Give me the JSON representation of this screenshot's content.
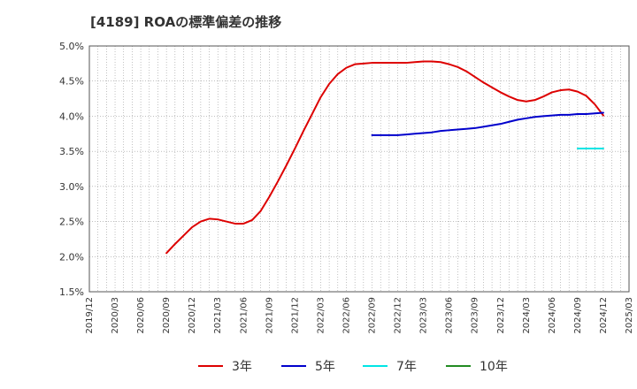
{
  "chart_data": {
    "type": "line",
    "title": "[4189]  ROAの標準偏差の推移",
    "xlabel": "",
    "ylabel": "",
    "ylim": [
      1.5,
      5.0
    ],
    "y_ticks": [
      "5.0%",
      "4.5%",
      "4.0%",
      "3.5%",
      "3.0%",
      "2.5%",
      "2.0%",
      "1.5%"
    ],
    "y_tick_values": [
      5.0,
      4.5,
      4.0,
      3.5,
      3.0,
      2.5,
      2.0,
      1.5
    ],
    "x_ticks": [
      "2019/12",
      "2020/03",
      "2020/06",
      "2020/09",
      "2020/12",
      "2021/03",
      "2021/06",
      "2021/09",
      "2021/12",
      "2022/03",
      "2022/06",
      "2022/09",
      "2022/12",
      "2023/03",
      "2023/06",
      "2023/09",
      "2023/12",
      "2024/03",
      "2024/06",
      "2024/09",
      "2024/12",
      "2025/03"
    ],
    "grid": true,
    "legend_position": "bottom",
    "series": [
      {
        "name": "3年",
        "color": "#dd0000",
        "points": [
          [
            "2020/09",
            2.05
          ],
          [
            "2020/10",
            2.18
          ],
          [
            "2020/11",
            2.3
          ],
          [
            "2020/12",
            2.42
          ],
          [
            "2021/01",
            2.5
          ],
          [
            "2021/02",
            2.54
          ],
          [
            "2021/03",
            2.53
          ],
          [
            "2021/04",
            2.5
          ],
          [
            "2021/05",
            2.47
          ],
          [
            "2021/06",
            2.47
          ],
          [
            "2021/07",
            2.52
          ],
          [
            "2021/08",
            2.65
          ],
          [
            "2021/09",
            2.85
          ],
          [
            "2021/10",
            3.07
          ],
          [
            "2021/11",
            3.3
          ],
          [
            "2021/12",
            3.54
          ],
          [
            "2022/01",
            3.79
          ],
          [
            "2022/02",
            4.03
          ],
          [
            "2022/03",
            4.27
          ],
          [
            "2022/04",
            4.46
          ],
          [
            "2022/05",
            4.6
          ],
          [
            "2022/06",
            4.69
          ],
          [
            "2022/07",
            4.74
          ],
          [
            "2022/08",
            4.75
          ],
          [
            "2022/09",
            4.76
          ],
          [
            "2022/10",
            4.76
          ],
          [
            "2022/11",
            4.76
          ],
          [
            "2022/12",
            4.76
          ],
          [
            "2023/01",
            4.76
          ],
          [
            "2023/02",
            4.77
          ],
          [
            "2023/03",
            4.78
          ],
          [
            "2023/04",
            4.78
          ],
          [
            "2023/05",
            4.77
          ],
          [
            "2023/06",
            4.74
          ],
          [
            "2023/07",
            4.7
          ],
          [
            "2023/08",
            4.64
          ],
          [
            "2023/09",
            4.56
          ],
          [
            "2023/10",
            4.48
          ],
          [
            "2023/11",
            4.41
          ],
          [
            "2023/12",
            4.34
          ],
          [
            "2024/01",
            4.28
          ],
          [
            "2024/02",
            4.23
          ],
          [
            "2024/03",
            4.21
          ],
          [
            "2024/04",
            4.23
          ],
          [
            "2024/05",
            4.28
          ],
          [
            "2024/06",
            4.34
          ],
          [
            "2024/07",
            4.37
          ],
          [
            "2024/08",
            4.38
          ],
          [
            "2024/09",
            4.35
          ],
          [
            "2024/10",
            4.29
          ],
          [
            "2024/11",
            4.17
          ],
          [
            "2024/12",
            4.01
          ]
        ]
      },
      {
        "name": "5年",
        "color": "#0000cc",
        "points": [
          [
            "2022/09",
            3.73
          ],
          [
            "2022/10",
            3.73
          ],
          [
            "2022/11",
            3.73
          ],
          [
            "2022/12",
            3.73
          ],
          [
            "2023/01",
            3.74
          ],
          [
            "2023/02",
            3.75
          ],
          [
            "2023/03",
            3.76
          ],
          [
            "2023/04",
            3.77
          ],
          [
            "2023/05",
            3.79
          ],
          [
            "2023/06",
            3.8
          ],
          [
            "2023/07",
            3.81
          ],
          [
            "2023/08",
            3.82
          ],
          [
            "2023/09",
            3.83
          ],
          [
            "2023/10",
            3.85
          ],
          [
            "2023/11",
            3.87
          ],
          [
            "2023/12",
            3.89
          ],
          [
            "2024/01",
            3.92
          ],
          [
            "2024/02",
            3.95
          ],
          [
            "2024/03",
            3.97
          ],
          [
            "2024/04",
            3.99
          ],
          [
            "2024/05",
            4.0
          ],
          [
            "2024/06",
            4.01
          ],
          [
            "2024/07",
            4.02
          ],
          [
            "2024/08",
            4.02
          ],
          [
            "2024/09",
            4.03
          ],
          [
            "2024/10",
            4.03
          ],
          [
            "2024/11",
            4.04
          ],
          [
            "2024/12",
            4.05
          ]
        ]
      },
      {
        "name": "7年",
        "color": "#00e5e5",
        "points": [
          [
            "2024/09",
            3.54
          ],
          [
            "2024/10",
            3.54
          ],
          [
            "2024/11",
            3.54
          ],
          [
            "2024/12",
            3.54
          ]
        ]
      },
      {
        "name": "10年",
        "color": "#228b22",
        "points": []
      }
    ]
  }
}
